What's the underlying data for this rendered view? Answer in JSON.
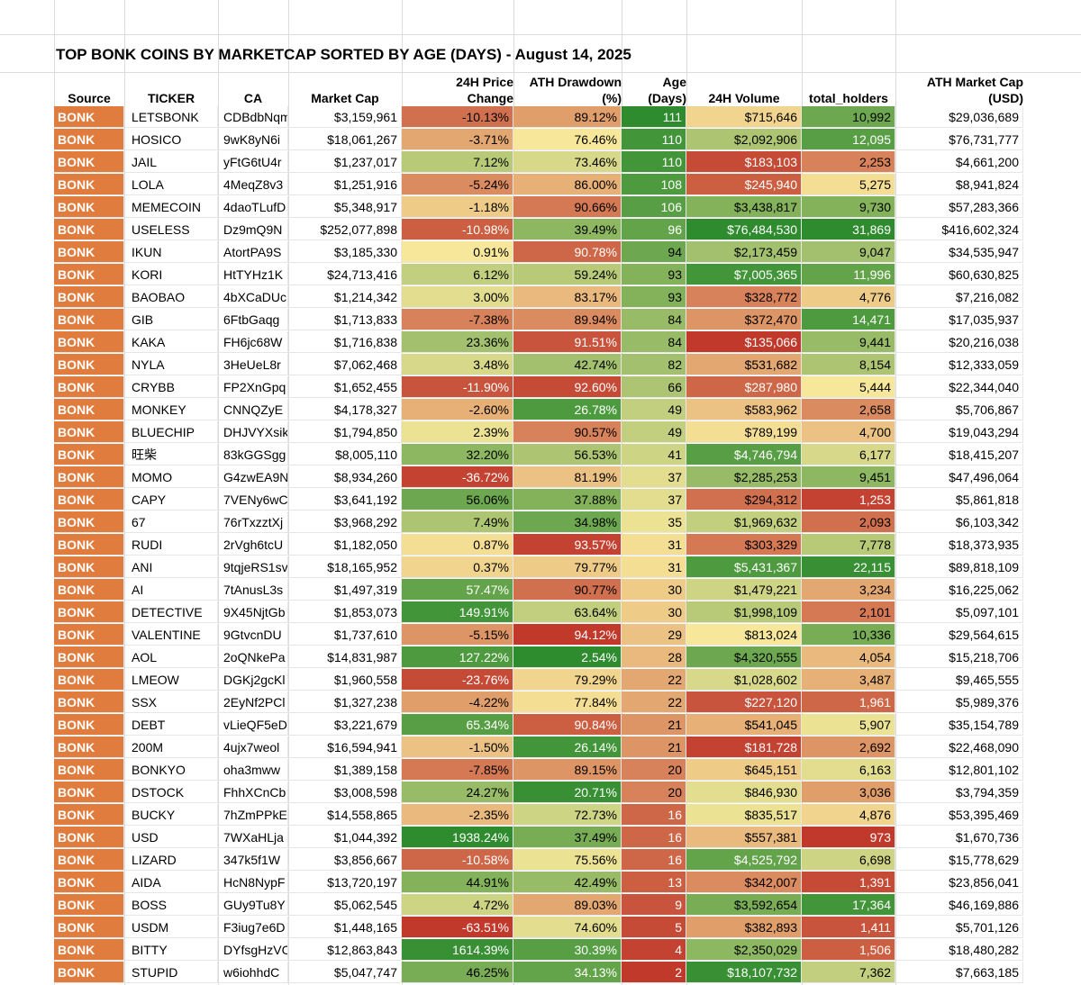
{
  "title": "TOP BONK COINS BY MARKETCAP SORTED BY AGE (DAYS) - August 14, 2025",
  "headers": {
    "source": "Source",
    "ticker": "TICKER",
    "ca": "CA",
    "mcap": "Market Cap",
    "change1": "24H Price",
    "change2": "Change",
    "ath1": "ATH Drawdown",
    "ath2": "(%)",
    "age1": "Age",
    "age2": "(Days)",
    "vol": "24H Volume",
    "holders": "total_holders",
    "athcap1": "ATH Market Cap",
    "athcap2": "(USD)"
  },
  "colors": {
    "source_bg": "#e07c3e",
    "scale_red": "#c0392b",
    "scale_yellow": "#f7e79a",
    "scale_green": "#2e8b2e"
  },
  "rows": [
    {
      "source": "BONK",
      "ticker": "LETSBONK",
      "ca": "CDBdbNqm",
      "mcap": "$3,159,961",
      "change": "-10.13%",
      "ath": "89.12%",
      "age": "111",
      "vol": "$715,646",
      "holders": "10,992",
      "athcap": "$29,036,689"
    },
    {
      "source": "BONK",
      "ticker": "HOSICO",
      "ca": "9wK8yN6i",
      "mcap": "$18,061,267",
      "change": "-3.71%",
      "ath": "76.46%",
      "age": "110",
      "vol": "$2,092,906",
      "holders": "12,095",
      "athcap": "$76,731,777"
    },
    {
      "source": "BONK",
      "ticker": "JAIL",
      "ca": "yFtG6tU4r",
      "mcap": "$1,237,017",
      "change": "7.12%",
      "ath": "73.46%",
      "age": "110",
      "vol": "$183,103",
      "holders": "2,253",
      "athcap": "$4,661,200"
    },
    {
      "source": "BONK",
      "ticker": "LOLA",
      "ca": "4MeqZ8v3",
      "mcap": "$1,251,916",
      "change": "-5.24%",
      "ath": "86.00%",
      "age": "108",
      "vol": "$245,940",
      "holders": "5,275",
      "athcap": "$8,941,824"
    },
    {
      "source": "BONK",
      "ticker": "MEMECOIN",
      "ca": "4daoTLufD",
      "mcap": "$5,348,917",
      "change": "-1.18%",
      "ath": "90.66%",
      "age": "106",
      "vol": "$3,438,817",
      "holders": "9,730",
      "athcap": "$57,283,366"
    },
    {
      "source": "BONK",
      "ticker": "USELESS",
      "ca": "Dz9mQ9N",
      "mcap": "$252,077,898",
      "change": "-10.98%",
      "ath": "39.49%",
      "age": "96",
      "vol": "$76,484,530",
      "holders": "31,869",
      "athcap": "$416,602,324"
    },
    {
      "source": "BONK",
      "ticker": "IKUN",
      "ca": "AtortPA9S",
      "mcap": "$3,185,330",
      "change": "0.91%",
      "ath": "90.78%",
      "age": "94",
      "vol": "$2,173,459",
      "holders": "9,047",
      "athcap": "$34,535,947"
    },
    {
      "source": "BONK",
      "ticker": "KORI",
      "ca": "HtTYHz1K",
      "mcap": "$24,713,416",
      "change": "6.12%",
      "ath": "59.24%",
      "age": "93",
      "vol": "$7,005,365",
      "holders": "11,996",
      "athcap": "$60,630,825"
    },
    {
      "source": "BONK",
      "ticker": "BAOBAO",
      "ca": "4bXCaDUc",
      "mcap": "$1,214,342",
      "change": "3.00%",
      "ath": "83.17%",
      "age": "93",
      "vol": "$328,772",
      "holders": "4,776",
      "athcap": "$7,216,082"
    },
    {
      "source": "BONK",
      "ticker": "GIB",
      "ca": "6FtbGaqg",
      "mcap": "$1,713,833",
      "change": "-7.38%",
      "ath": "89.94%",
      "age": "84",
      "vol": "$372,470",
      "holders": "14,471",
      "athcap": "$17,035,937"
    },
    {
      "source": "BONK",
      "ticker": "KAKA",
      "ca": "FH6jc68W",
      "mcap": "$1,716,838",
      "change": "23.36%",
      "ath": "91.51%",
      "age": "84",
      "vol": "$135,066",
      "holders": "9,441",
      "athcap": "$20,216,038"
    },
    {
      "source": "BONK",
      "ticker": "NYLA",
      "ca": "3HeUeL8r",
      "mcap": "$7,062,468",
      "change": "3.48%",
      "ath": "42.74%",
      "age": "82",
      "vol": "$531,682",
      "holders": "8,154",
      "athcap": "$12,333,059"
    },
    {
      "source": "BONK",
      "ticker": "CRYBB",
      "ca": "FP2XnGpq",
      "mcap": "$1,652,455",
      "change": "-11.90%",
      "ath": "92.60%",
      "age": "66",
      "vol": "$287,980",
      "holders": "5,444",
      "athcap": "$22,344,040"
    },
    {
      "source": "BONK",
      "ticker": "MONKEY",
      "ca": "CNNQZyE",
      "mcap": "$4,178,327",
      "change": "-2.60%",
      "ath": "26.78%",
      "age": "49",
      "vol": "$583,962",
      "holders": "2,658",
      "athcap": "$5,706,867"
    },
    {
      "source": "BONK",
      "ticker": "BLUECHIP",
      "ca": "DHJVYXsik",
      "mcap": "$1,794,850",
      "change": "2.39%",
      "ath": "90.57%",
      "age": "49",
      "vol": "$789,199",
      "holders": "4,700",
      "athcap": "$19,043,294"
    },
    {
      "source": "BONK",
      "ticker": "旺柴",
      "ca": "83kGGSgg",
      "mcap": "$8,005,110",
      "change": "32.20%",
      "ath": "56.53%",
      "age": "41",
      "vol": "$4,746,794",
      "holders": "6,177",
      "athcap": "$18,415,207"
    },
    {
      "source": "BONK",
      "ticker": "MOMO",
      "ca": "G4zwEA9N",
      "mcap": "$8,934,260",
      "change": "-36.72%",
      "ath": "81.19%",
      "age": "37",
      "vol": "$2,285,253",
      "holders": "9,451",
      "athcap": "$47,496,064"
    },
    {
      "source": "BONK",
      "ticker": "CAPY",
      "ca": "7VENy6wC",
      "mcap": "$3,641,192",
      "change": "56.06%",
      "ath": "37.88%",
      "age": "37",
      "vol": "$294,312",
      "holders": "1,253",
      "athcap": "$5,861,818"
    },
    {
      "source": "BONK",
      "ticker": "67",
      "ca": "76rTxzztXj",
      "mcap": "$3,968,292",
      "change": "7.49%",
      "ath": "34.98%",
      "age": "35",
      "vol": "$1,969,632",
      "holders": "2,093",
      "athcap": "$6,103,342"
    },
    {
      "source": "BONK",
      "ticker": "RUDI",
      "ca": "2rVgh6tcU",
      "mcap": "$1,182,050",
      "change": "0.87%",
      "ath": "93.57%",
      "age": "31",
      "vol": "$303,329",
      "holders": "7,778",
      "athcap": "$18,373,935"
    },
    {
      "source": "BONK",
      "ticker": "ANI",
      "ca": "9tqjeRS1sv",
      "mcap": "$18,165,952",
      "change": "0.37%",
      "ath": "79.77%",
      "age": "31",
      "vol": "$5,431,367",
      "holders": "22,115",
      "athcap": "$89,818,109"
    },
    {
      "source": "BONK",
      "ticker": "AI",
      "ca": "7tAnusL3s",
      "mcap": "$1,497,319",
      "change": "57.47%",
      "ath": "90.77%",
      "age": "30",
      "vol": "$1,479,221",
      "holders": "3,234",
      "athcap": "$16,225,062"
    },
    {
      "source": "BONK",
      "ticker": "DETECTIVE",
      "ca": "9X45NjtGb",
      "mcap": "$1,853,073",
      "change": "149.91%",
      "ath": "63.64%",
      "age": "30",
      "vol": "$1,998,109",
      "holders": "2,101",
      "athcap": "$5,097,101"
    },
    {
      "source": "BONK",
      "ticker": "VALENTINE",
      "ca": "9GtvcnDU",
      "mcap": "$1,737,610",
      "change": "-5.15%",
      "ath": "94.12%",
      "age": "29",
      "vol": "$813,024",
      "holders": "10,336",
      "athcap": "$29,564,615"
    },
    {
      "source": "BONK",
      "ticker": "AOL",
      "ca": "2oQNkePa",
      "mcap": "$14,831,987",
      "change": "127.22%",
      "ath": "2.54%",
      "age": "28",
      "vol": "$4,320,555",
      "holders": "4,054",
      "athcap": "$15,218,706"
    },
    {
      "source": "BONK",
      "ticker": "LMEOW",
      "ca": "DGKj2gcKl",
      "mcap": "$1,960,558",
      "change": "-23.76%",
      "ath": "79.29%",
      "age": "22",
      "vol": "$1,028,602",
      "holders": "3,487",
      "athcap": "$9,465,555"
    },
    {
      "source": "BONK",
      "ticker": "SSX",
      "ca": "2EyNf2PCl",
      "mcap": "$1,327,238",
      "change": "-4.22%",
      "ath": "77.84%",
      "age": "22",
      "vol": "$227,120",
      "holders": "1,961",
      "athcap": "$5,989,376"
    },
    {
      "source": "BONK",
      "ticker": "DEBT",
      "ca": "vLieQF5eD",
      "mcap": "$3,221,679",
      "change": "65.34%",
      "ath": "90.84%",
      "age": "21",
      "vol": "$541,045",
      "holders": "5,907",
      "athcap": "$35,154,789"
    },
    {
      "source": "BONK",
      "ticker": "200M",
      "ca": "4ujx7weol",
      "mcap": "$16,594,941",
      "change": "-1.50%",
      "ath": "26.14%",
      "age": "21",
      "vol": "$181,728",
      "holders": "2,692",
      "athcap": "$22,468,090"
    },
    {
      "source": "BONK",
      "ticker": "BONKYO",
      "ca": "oha3mww",
      "mcap": "$1,389,158",
      "change": "-7.85%",
      "ath": "89.15%",
      "age": "20",
      "vol": "$645,151",
      "holders": "6,163",
      "athcap": "$12,801,102"
    },
    {
      "source": "BONK",
      "ticker": "DSTOCK",
      "ca": "FhhXCnCb",
      "mcap": "$3,008,598",
      "change": "24.27%",
      "ath": "20.71%",
      "age": "20",
      "vol": "$846,930",
      "holders": "3,036",
      "athcap": "$3,794,359"
    },
    {
      "source": "BONK",
      "ticker": "BUCKY",
      "ca": "7hZmPPkE",
      "mcap": "$14,558,865",
      "change": "-2.35%",
      "ath": "72.73%",
      "age": "16",
      "vol": "$835,517",
      "holders": "4,876",
      "athcap": "$53,395,469"
    },
    {
      "source": "BONK",
      "ticker": "USD",
      "ca": "7WXaHLja",
      "mcap": "$1,044,392",
      "change": "1938.24%",
      "ath": "37.49%",
      "age": "16",
      "vol": "$557,381",
      "holders": "973",
      "athcap": "$1,670,736"
    },
    {
      "source": "BONK",
      "ticker": "LIZARD",
      "ca": "347k5f1W",
      "mcap": "$3,856,667",
      "change": "-10.58%",
      "ath": "75.56%",
      "age": "16",
      "vol": "$4,525,792",
      "holders": "6,698",
      "athcap": "$15,778,629"
    },
    {
      "source": "BONK",
      "ticker": "AIDA",
      "ca": "HcN8NypF",
      "mcap": "$13,720,197",
      "change": "44.91%",
      "ath": "42.49%",
      "age": "13",
      "vol": "$342,007",
      "holders": "1,391",
      "athcap": "$23,856,041"
    },
    {
      "source": "BONK",
      "ticker": "BOSS",
      "ca": "GUy9Tu8Y",
      "mcap": "$5,062,545",
      "change": "4.72%",
      "ath": "89.03%",
      "age": "9",
      "vol": "$3,592,654",
      "holders": "17,364",
      "athcap": "$46,169,886"
    },
    {
      "source": "BONK",
      "ticker": "USDM",
      "ca": "F3iug7e6D",
      "mcap": "$1,448,165",
      "change": "-63.51%",
      "ath": "74.60%",
      "age": "5",
      "vol": "$382,893",
      "holders": "1,411",
      "athcap": "$5,701,126"
    },
    {
      "source": "BONK",
      "ticker": "BITTY",
      "ca": "DYfsgHzVC",
      "mcap": "$12,863,843",
      "change": "1614.39%",
      "ath": "30.39%",
      "age": "4",
      "vol": "$2,350,029",
      "holders": "1,506",
      "athcap": "$18,480,282"
    },
    {
      "source": "BONK",
      "ticker": "STUPID",
      "ca": "w6iohhdC",
      "mcap": "$5,047,747",
      "change": "46.25%",
      "ath": "34.13%",
      "age": "2",
      "vol": "$18,107,732",
      "holders": "7,362",
      "athcap": "$7,663,185"
    }
  ]
}
